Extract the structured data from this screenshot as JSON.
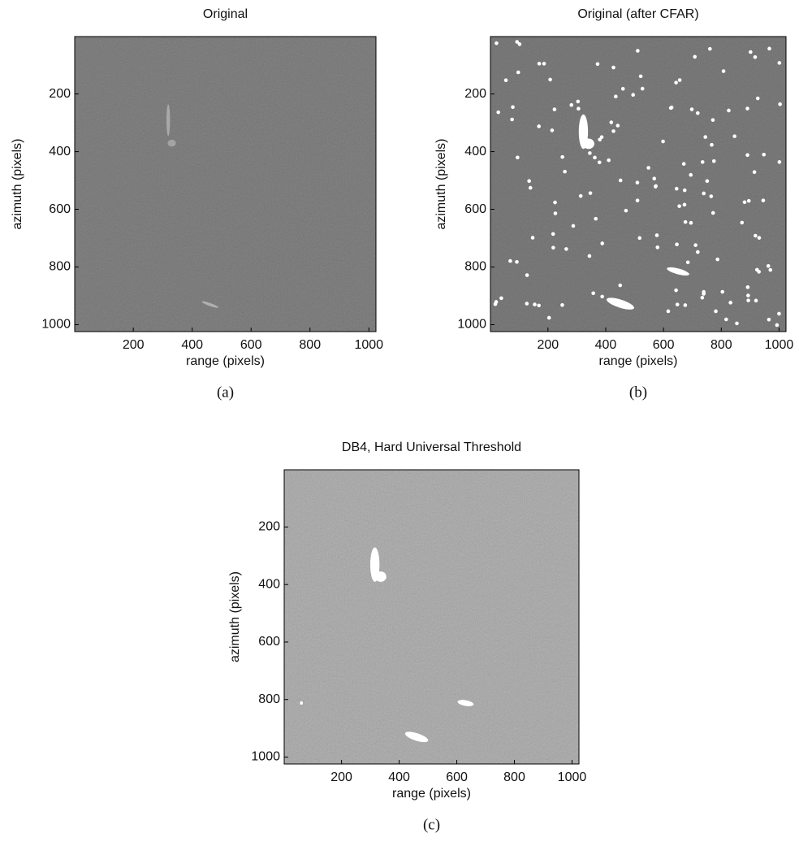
{
  "chart_data": [
    {
      "type": "image",
      "title": "Original",
      "xlabel": "range (pixels)",
      "ylabel": "azimuth (pixels)",
      "caption": "(a)",
      "xlim": [
        1,
        1024
      ],
      "ylim": [
        1024,
        1
      ],
      "xticks": [
        200,
        400,
        600,
        800,
        1000
      ],
      "yticks": [
        200,
        400,
        600,
        800,
        1000
      ],
      "color": "#7c7c7c"
    },
    {
      "type": "image",
      "title": "Original (after CFAR)",
      "xlabel": "range (pixels)",
      "ylabel": "azimuth (pixels)",
      "caption": "(b)",
      "xlim": [
        1,
        1024
      ],
      "ylim": [
        1024,
        1
      ],
      "xticks": [
        200,
        400,
        600,
        800,
        1000
      ],
      "yticks": [
        200,
        400,
        600,
        800,
        1000
      ],
      "color": "#767676"
    },
    {
      "type": "image",
      "title": "DB4, Hard Universal Threshold",
      "xlabel": "range (pixels)",
      "ylabel": "azimuth (pixels)",
      "caption": "(c)",
      "xlim": [
        1,
        1024
      ],
      "ylim": [
        1024,
        1
      ],
      "xticks": [
        200,
        400,
        600,
        800,
        1000
      ],
      "yticks": [
        200,
        400,
        600,
        800,
        1000
      ],
      "color": "#a9a9a9"
    }
  ]
}
